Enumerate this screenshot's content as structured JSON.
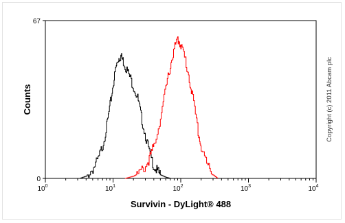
{
  "chart_data": {
    "type": "line",
    "xlabel": "Survivin - DyLight® 488",
    "ylabel": "Counts",
    "x_scale": "log",
    "xlim": [
      1,
      10000
    ],
    "ylim": [
      0,
      67
    ],
    "y_ticks": [
      "0",
      "67"
    ],
    "x_ticks": [
      {
        "base": "10",
        "exp": "0"
      },
      {
        "base": "10",
        "exp": "1"
      },
      {
        "base": "10",
        "exp": "2"
      },
      {
        "base": "10",
        "exp": "3"
      },
      {
        "base": "10",
        "exp": "4"
      }
    ],
    "annotation": "Copyright (c) 2011 Abcam plc",
    "series": [
      {
        "color": "#000000",
        "x": [
          3.2,
          4,
          5,
          6,
          7,
          8,
          9,
          10,
          11,
          12,
          13,
          14,
          15,
          17,
          20,
          23,
          26,
          30,
          35,
          40,
          45,
          50,
          60,
          70
        ],
        "y": [
          0,
          1,
          4,
          8,
          14,
          22,
          31,
          40,
          47,
          51,
          52,
          50,
          48,
          44,
          39,
          34,
          26,
          18,
          10,
          5,
          3,
          1.5,
          0.5,
          0
        ]
      },
      {
        "color": "#ff0000",
        "x": [
          15,
          20,
          25,
          30,
          35,
          40,
          50,
          60,
          70,
          80,
          90,
          100,
          110,
          130,
          150,
          180,
          200,
          250,
          300,
          350
        ],
        "y": [
          0,
          1,
          2.5,
          5,
          9,
          14,
          26,
          38,
          48,
          55,
          59,
          57,
          53,
          44,
          34,
          20,
          13,
          5,
          1.5,
          0
        ]
      }
    ]
  }
}
